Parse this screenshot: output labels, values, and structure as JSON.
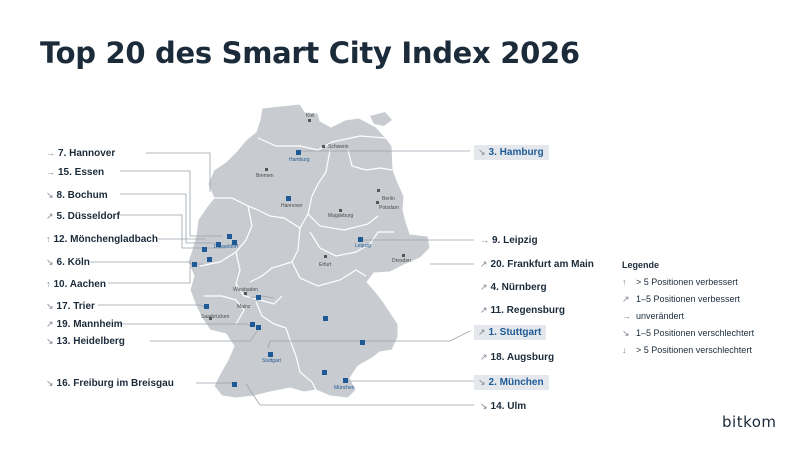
{
  "title": "Top 20 des Smart City Index 2026",
  "colors": {
    "accent": "#1e5a96",
    "text": "#1b2b3a",
    "map": "#c8ccd0",
    "highlight": "#e4e8ec"
  },
  "cities": {
    "kiel": "Kiel",
    "hamburg": "Hamburg",
    "schwerin": "Schwerin",
    "bremen": "Bremen",
    "berlin": "Berlin",
    "potsdam": "Potsdam",
    "hannover": "Hannover",
    "magdeburg": "Magdeburg",
    "duesseldorf": "Düsseldorf",
    "leipzig": "Leipzig",
    "dresden": "Dresden",
    "erfurt": "Erfurt",
    "wiesbaden": "Wiesbaden",
    "mainz": "Mainz",
    "saarbruecken": "Saarbrücken",
    "stuttgart": "Stuttgart",
    "muenchen": "München"
  },
  "left_labels": [
    {
      "arrow": "→",
      "text": "7. Hannover"
    },
    {
      "arrow": "→",
      "text": "15. Essen"
    },
    {
      "arrow": "↘",
      "text": "8. Bochum"
    },
    {
      "arrow": "↗",
      "text": "5. Düsseldorf"
    },
    {
      "arrow": "↑",
      "text": "12. Mönchengladbach"
    },
    {
      "arrow": "↘",
      "text": "6. Köln"
    },
    {
      "arrow": "↑",
      "text": "10. Aachen"
    },
    {
      "arrow": "↘",
      "text": "17. Trier"
    },
    {
      "arrow": "↗",
      "text": "19. Mannheim"
    },
    {
      "arrow": "↘",
      "text": "13. Heidelberg"
    },
    {
      "arrow": "↘",
      "text": "16. Freiburg im Breisgau"
    }
  ],
  "right_labels": [
    {
      "arrow": "↘",
      "text": "3. Hamburg"
    },
    {
      "arrow": "→",
      "text": "9. Leipzig"
    },
    {
      "arrow": "↗",
      "text": "20. Frankfurt am Main"
    },
    {
      "arrow": "↗",
      "text": "4. Nürnberg"
    },
    {
      "arrow": "↗",
      "text": "11. Regensburg"
    },
    {
      "arrow": "↗",
      "text": "1. Stuttgart"
    },
    {
      "arrow": "↗",
      "text": "18. Augsburg"
    },
    {
      "arrow": "↘",
      "text": "2. München"
    },
    {
      "arrow": "↘",
      "text": "14. Ulm"
    }
  ],
  "legend": {
    "title": "Legende",
    "items": [
      {
        "arrow": "↑",
        "text": "> 5 Positionen verbessert"
      },
      {
        "arrow": "↗",
        "text": "1–5 Positionen verbessert"
      },
      {
        "arrow": "→",
        "text": "unverändert"
      },
      {
        "arrow": "↘",
        "text": "1–5 Positionen verschlechtert"
      },
      {
        "arrow": "↓",
        "text": "> 5 Positionen verschlechtert"
      }
    ]
  },
  "logo": "bitkom"
}
